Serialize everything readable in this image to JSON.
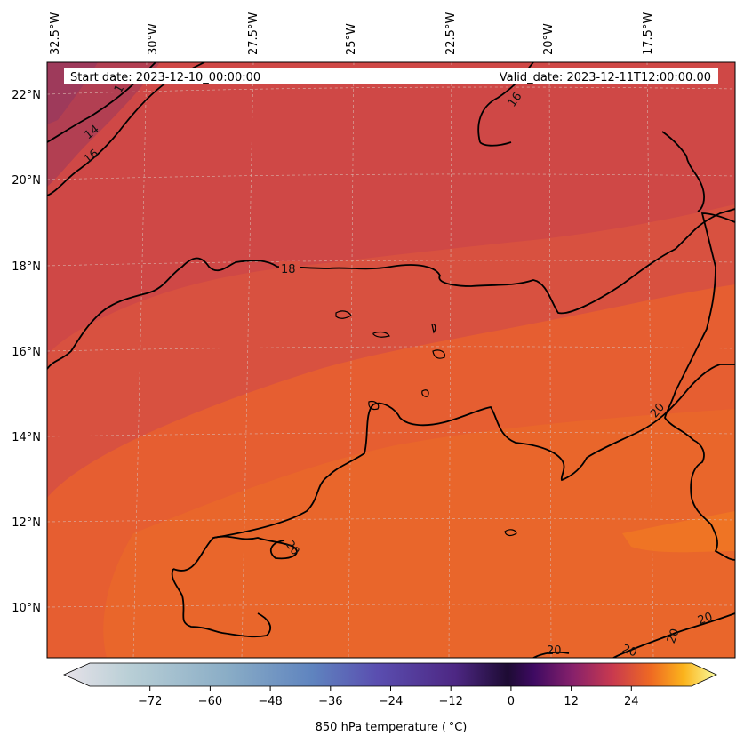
{
  "map": {
    "title_left": "Start date: 2023-12-10_00:00:00",
    "title_right": "Valid_date: 2023-12-11T12:00:00.00",
    "lon_labels": [
      "32.5°W",
      "30°W",
      "27.5°W",
      "25°W",
      "22.5°W",
      "20°W",
      "17.5°W"
    ],
    "lat_labels": [
      "22°N",
      "20°N",
      "18°N",
      "16°N",
      "14°N",
      "12°N",
      "10°N"
    ],
    "contour_labels": [
      "14",
      "16",
      "18",
      "16",
      "20",
      "20",
      "20",
      "20",
      "20",
      "20",
      "1"
    ],
    "field_colors": {
      "cold": "#a33a5c",
      "mid": "#cf4a45",
      "warm": "#e05a38",
      "hot": "#ea6a28"
    }
  },
  "colorbar": {
    "label": "850 hPa temperature ( °C)",
    "ticks": [
      "−72",
      "−60",
      "−48",
      "−36",
      "−24",
      "−12",
      "0",
      "12",
      "24"
    ],
    "range": [
      -84,
      36
    ]
  }
}
